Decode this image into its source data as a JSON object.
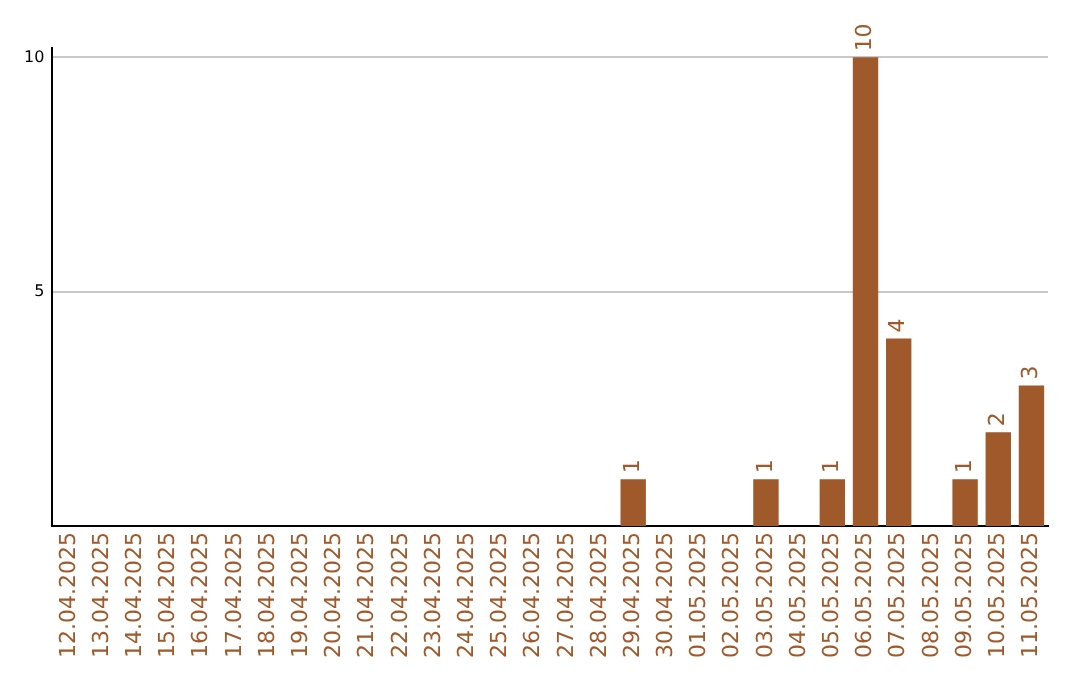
{
  "chart_data": {
    "type": "bar",
    "categories": [
      "12.04.2025",
      "13.04.2025",
      "14.04.2025",
      "15.04.2025",
      "16.04.2025",
      "17.04.2025",
      "18.04.2025",
      "19.04.2025",
      "20.04.2025",
      "21.04.2025",
      "22.04.2025",
      "23.04.2025",
      "24.04.2025",
      "25.04.2025",
      "26.04.2025",
      "27.04.2025",
      "28.04.2025",
      "29.04.2025",
      "30.04.2025",
      "01.05.2025",
      "02.05.2025",
      "03.05.2025",
      "04.05.2025",
      "05.05.2025",
      "06.05.2025",
      "07.05.2025",
      "08.05.2025",
      "09.05.2025",
      "10.05.2025",
      "11.05.2025"
    ],
    "values": [
      null,
      null,
      null,
      null,
      null,
      null,
      null,
      null,
      null,
      null,
      null,
      null,
      null,
      null,
      null,
      null,
      null,
      1,
      null,
      null,
      null,
      1,
      null,
      1,
      10,
      4,
      null,
      1,
      2,
      3
    ],
    "color": "#a0592a",
    "ylim": [
      0,
      10.2
    ],
    "yticks": [
      5,
      10
    ],
    "grid": "y",
    "data_labels": true
  }
}
